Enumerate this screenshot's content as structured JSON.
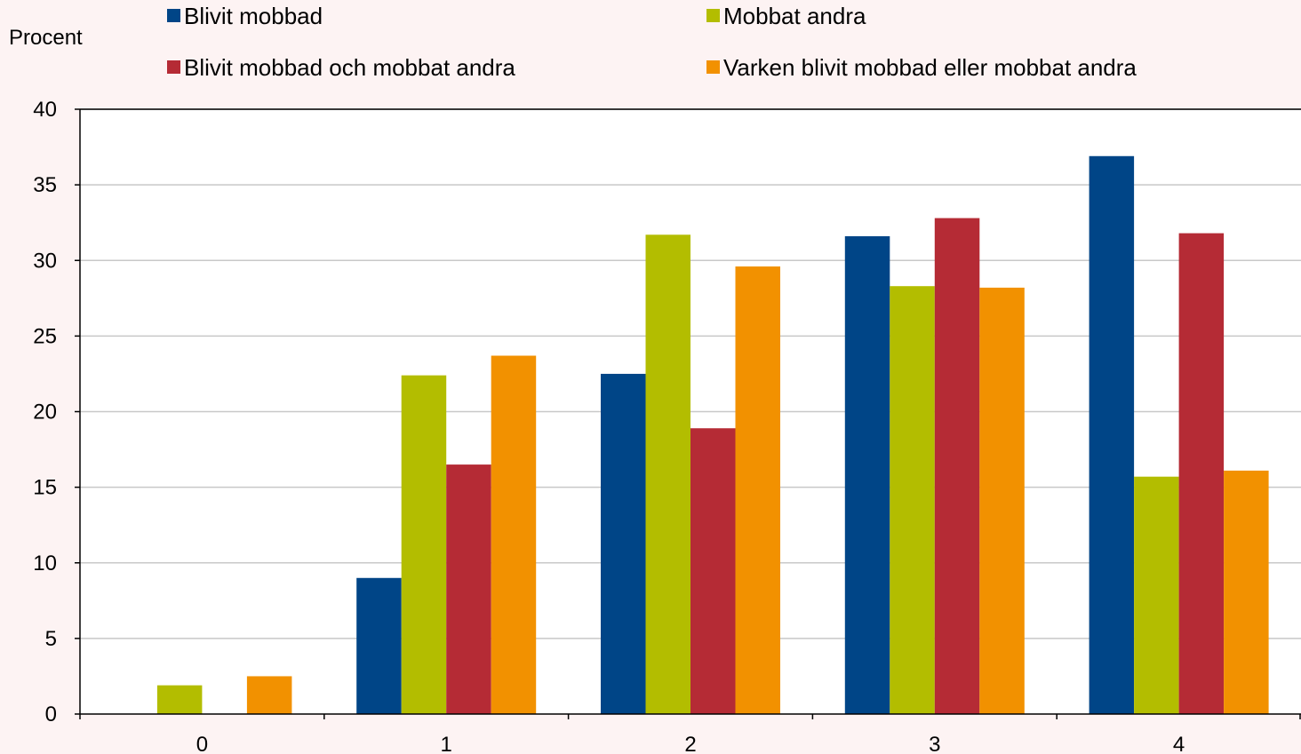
{
  "chart_data": {
    "type": "bar",
    "ylabel": "Procent",
    "ylim": [
      0,
      40
    ],
    "yticks": [
      0,
      5,
      10,
      15,
      20,
      25,
      30,
      35,
      40
    ],
    "categories": [
      "0",
      "1",
      "2",
      "3",
      "4"
    ],
    "grid": true,
    "legend_position": "top",
    "series": [
      {
        "name": "Blivit mobbad",
        "color": "#004587",
        "values": [
          0,
          9.0,
          22.5,
          31.6,
          36.9
        ]
      },
      {
        "name": "Mobbat andra",
        "color": "#b3bd00",
        "values": [
          1.9,
          22.4,
          31.7,
          28.3,
          15.7
        ]
      },
      {
        "name": "Blivit mobbad och mobbat andra",
        "color": "#b52b35",
        "values": [
          0,
          16.5,
          18.9,
          32.8,
          31.8
        ]
      },
      {
        "name": "Varken blivit mobbad eller mobbat andra",
        "color": "#f29100",
        "values": [
          2.5,
          23.7,
          29.6,
          28.2,
          16.1
        ]
      }
    ]
  }
}
